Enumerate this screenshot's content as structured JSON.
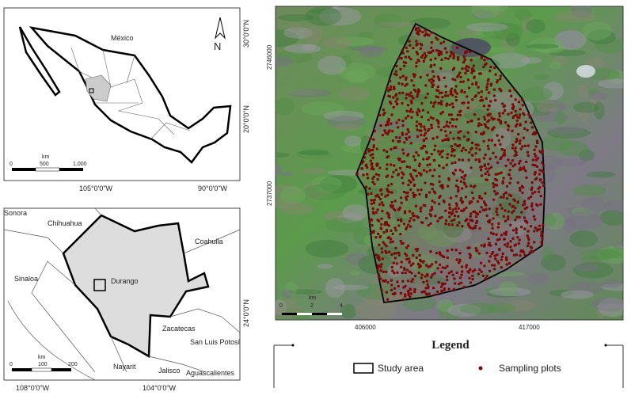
{
  "mexico_map": {
    "country_label": "México",
    "north_label": "N",
    "lat_labels": [
      "30°0'0\"N",
      "20°0'0\"N"
    ],
    "lon_labels": [
      "105°0'0\"W",
      "90°0'0\"W"
    ],
    "scale_unit": "km",
    "scale_labels": [
      "0",
      "500",
      "1,000"
    ]
  },
  "durango_map": {
    "state_labels": [
      "Sonora",
      "Chihuahua",
      "Coahuila",
      "Sinaloa",
      "Durango",
      "Zacatecas",
      "San Luis Potosí",
      "Nayarit",
      "Jalisco",
      "Aguascalientes"
    ],
    "lat_labels": [
      "24°0'0\"N"
    ],
    "lon_labels": [
      "108°0'0\"W",
      "104°0'0\"W"
    ],
    "scale_unit": "km",
    "scale_labels": [
      "0",
      "100",
      "200"
    ]
  },
  "study_map": {
    "northing_labels": [
      "2746000",
      "2737000"
    ],
    "easting_labels": [
      "406000",
      "417000"
    ],
    "scale_unit": "km",
    "scale_labels": [
      "0",
      "2",
      "4"
    ]
  },
  "legend": {
    "title": "Legend",
    "items": [
      "Study area",
      "Sampling plots"
    ]
  }
}
